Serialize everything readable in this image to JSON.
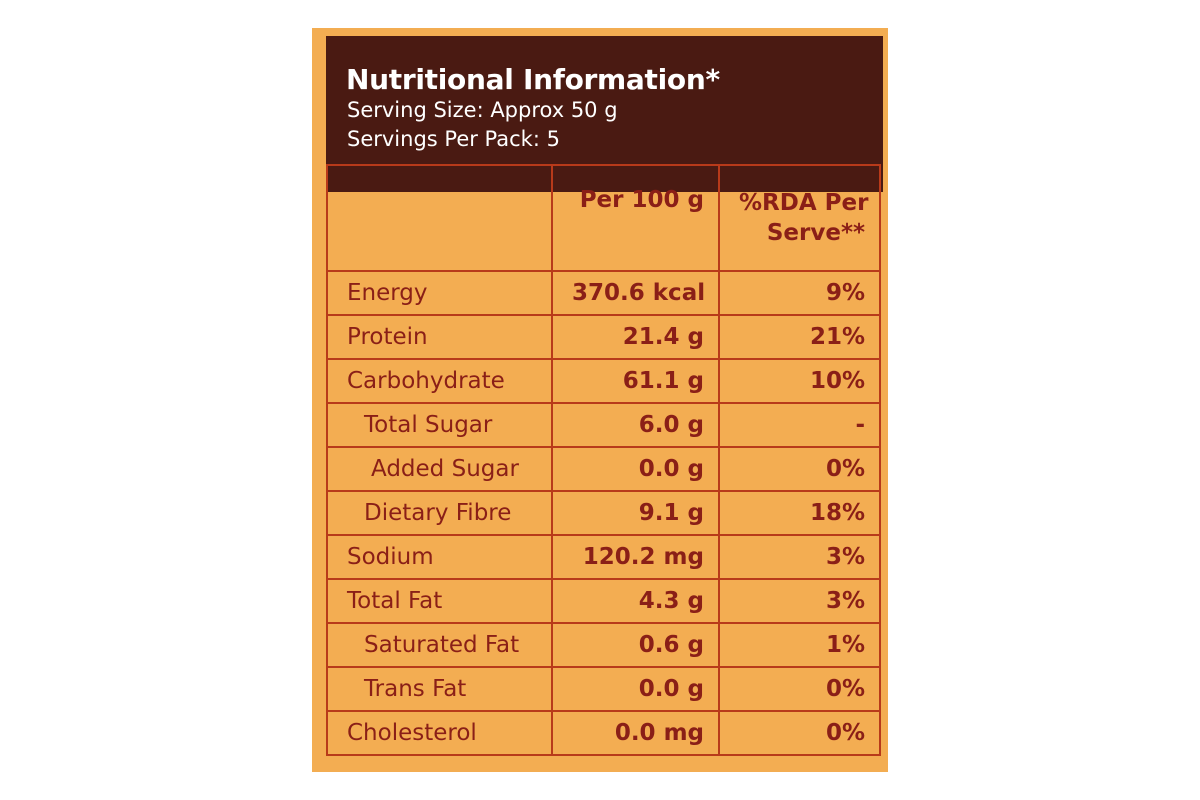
{
  "header": {
    "title": "Nutritional Information*",
    "serving_size": "Serving Size: Approx 50 g",
    "servings_per_pack": "Servings Per Pack: 5"
  },
  "table": {
    "columns": [
      "",
      "Per 100 g",
      "%RDA Per Serve**"
    ],
    "rows": [
      {
        "nutrient": "Energy",
        "per_100g": "370.6 kcal",
        "rda": "9%",
        "indent": 0
      },
      {
        "nutrient": "Protein",
        "per_100g": "21.4 g",
        "rda": "21%",
        "indent": 0
      },
      {
        "nutrient": "Carbohydrate",
        "per_100g": "61.1 g",
        "rda": "10%",
        "indent": 0
      },
      {
        "nutrient": "Total Sugar",
        "per_100g": "6.0 g",
        "rda": "-",
        "indent": 1
      },
      {
        "nutrient": "Added Sugar",
        "per_100g": "0.0 g",
        "rda": "0%",
        "indent": 2
      },
      {
        "nutrient": "Dietary Fibre",
        "per_100g": "9.1 g",
        "rda": "18%",
        "indent": 1
      },
      {
        "nutrient": "Sodium",
        "per_100g": "120.2 mg",
        "rda": "3%",
        "indent": 0
      },
      {
        "nutrient": "Total Fat",
        "per_100g": "4.3 g",
        "rda": "3%",
        "indent": 0
      },
      {
        "nutrient": "Saturated Fat",
        "per_100g": "0.6 g",
        "rda": "1%",
        "indent": 1
      },
      {
        "nutrient": "Trans Fat",
        "per_100g": "0.0 g",
        "rda": "0%",
        "indent": 1
      },
      {
        "nutrient": "Cholesterol",
        "per_100g": "0.0 mg",
        "rda": "0%",
        "indent": 0
      }
    ]
  },
  "colors": {
    "panel_background": "#f3ad52",
    "header_background": "#4a1a12",
    "header_text": "#ffffff",
    "table_text": "#8a1f17",
    "table_border": "#b83a1a"
  }
}
